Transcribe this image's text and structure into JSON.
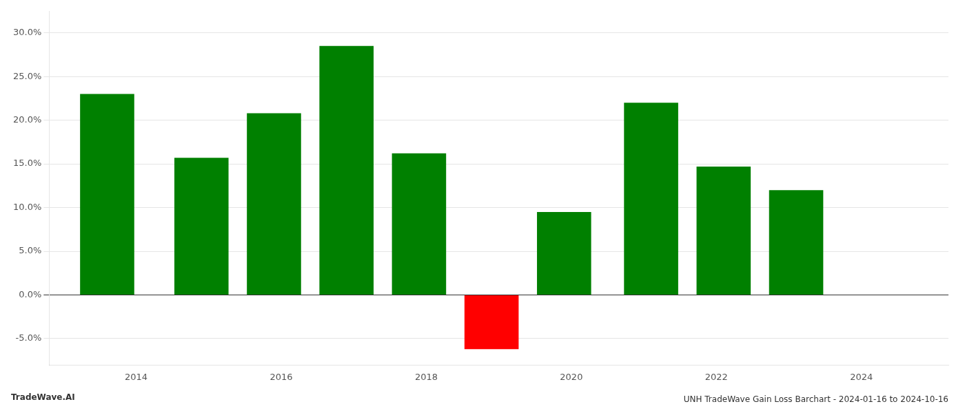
{
  "chart_data": {
    "type": "bar",
    "title": "UNH TradeWave Gain Loss Barchart - 2024-01-16 to 2024-10-16",
    "annotations": [
      "TradeWave.AI"
    ],
    "x": [
      2013.6,
      2014.9,
      2015.9,
      2016.9,
      2017.9,
      2018.9,
      2019.9,
      2021.1,
      2022.1,
      2023.1
    ],
    "values": [
      0.23,
      0.157,
      0.208,
      0.285,
      0.162,
      -0.062,
      0.095,
      0.22,
      0.147,
      0.12
    ],
    "colors": [
      "#008000",
      "#008000",
      "#008000",
      "#008000",
      "#008000",
      "#ff0000",
      "#008000",
      "#008000",
      "#008000",
      "#008000"
    ],
    "xlim": [
      2012.8,
      2025.2
    ],
    "xticks": [
      2014,
      2016,
      2018,
      2020,
      2022,
      2024
    ],
    "ylim": [
      -0.08,
      0.325
    ],
    "yticks": [
      {
        "value": -0.05,
        "label": "-5.0%"
      },
      {
        "value": 0.0,
        "label": "0.0%"
      },
      {
        "value": 0.05,
        "label": "5.0%"
      },
      {
        "value": 0.1,
        "label": "10.0%"
      },
      {
        "value": 0.15,
        "label": "15.0%"
      },
      {
        "value": 0.2,
        "label": "20.0%"
      },
      {
        "value": 0.25,
        "label": "25.0%"
      },
      {
        "value": 0.3,
        "label": "30.0%"
      }
    ],
    "grid": "y"
  }
}
